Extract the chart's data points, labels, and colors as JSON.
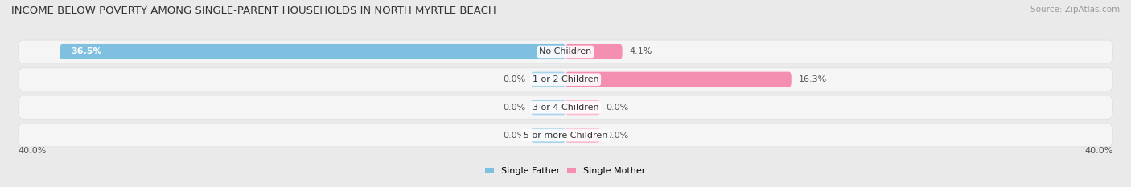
{
  "title": "INCOME BELOW POVERTY AMONG SINGLE-PARENT HOUSEHOLDS IN NORTH MYRTLE BEACH",
  "source": "Source: ZipAtlas.com",
  "categories": [
    "No Children",
    "1 or 2 Children",
    "3 or 4 Children",
    "5 or more Children"
  ],
  "single_father": [
    36.5,
    0.0,
    0.0,
    0.0
  ],
  "single_mother": [
    4.1,
    16.3,
    0.0,
    0.0
  ],
  "father_color": "#7fbfdf",
  "father_color_light": "#aad4ea",
  "mother_color": "#f48fb1",
  "mother_color_light": "#f9bdd0",
  "max_val": 40.0,
  "bg_color": "#eaeaea",
  "row_bg_color": "#f5f5f5",
  "title_fontsize": 9.5,
  "source_fontsize": 7.5,
  "label_fontsize": 8,
  "category_fontsize": 8,
  "stub_size": 2.5
}
